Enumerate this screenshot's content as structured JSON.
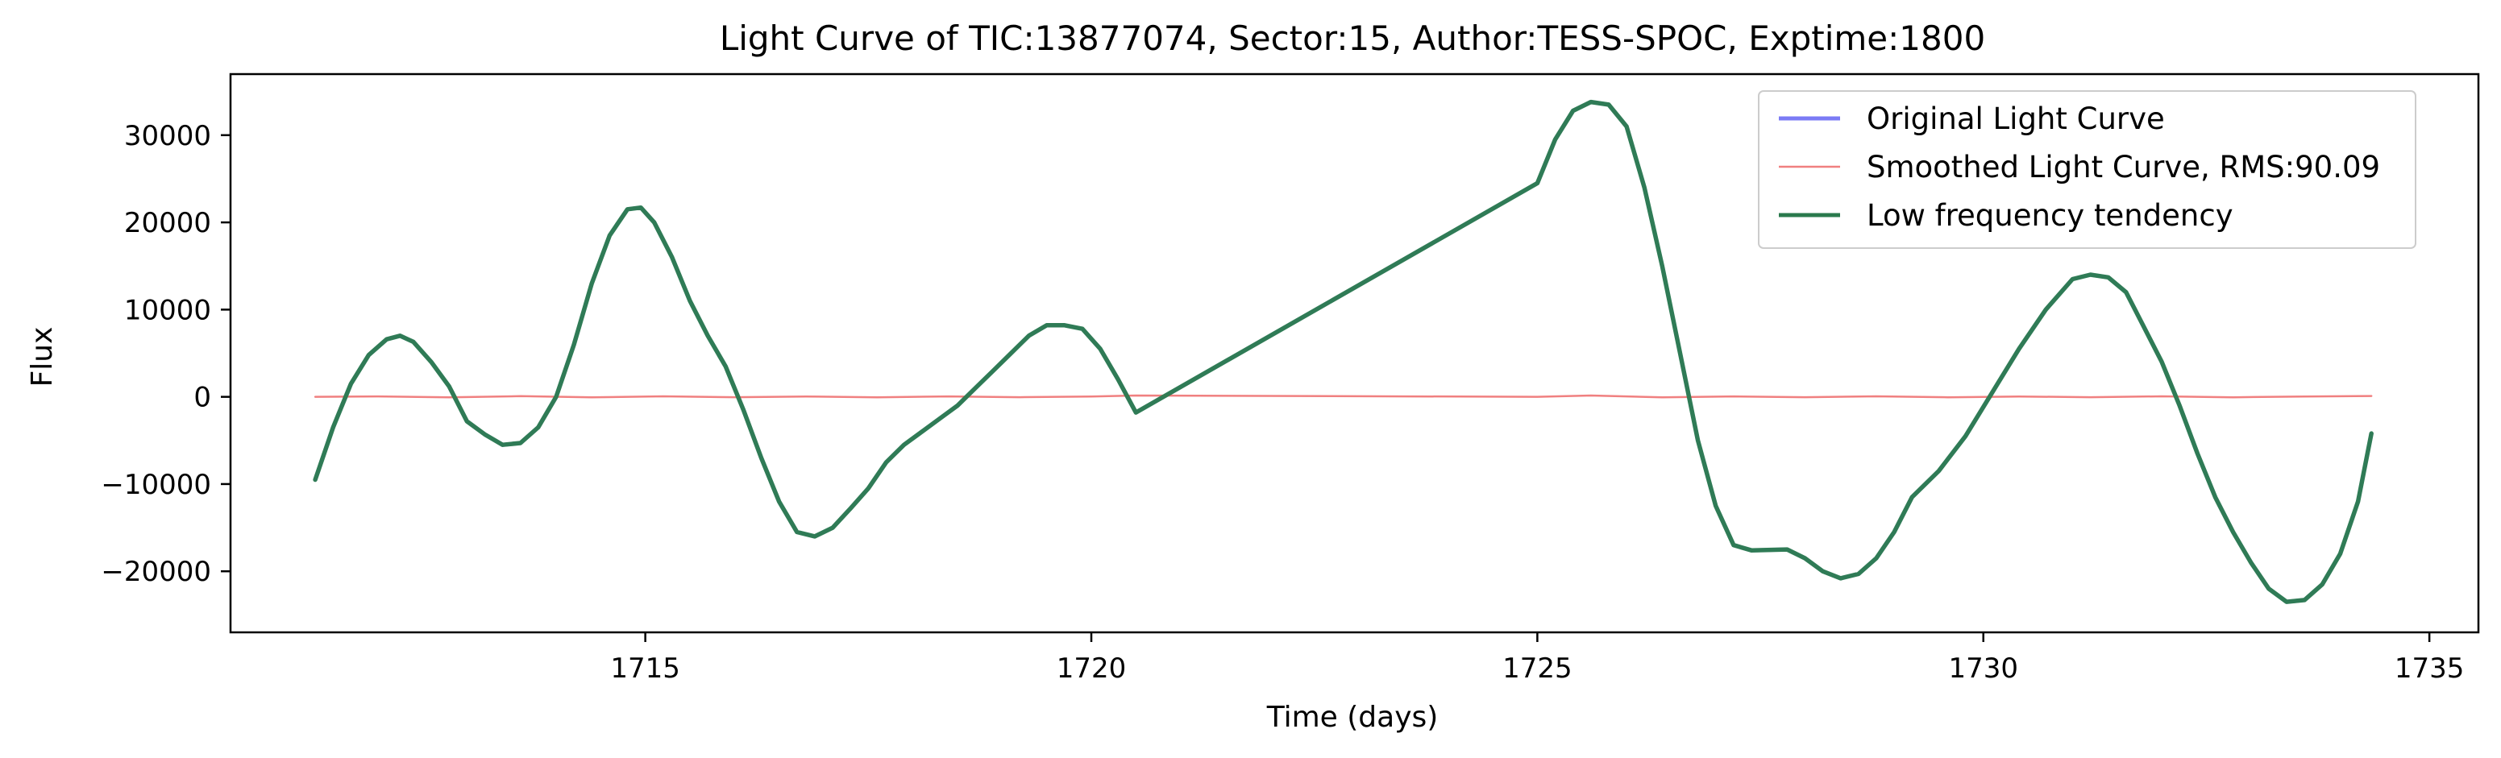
{
  "chart_data": {
    "type": "line",
    "title": "Light Curve of TIC:13877074, Sector:15, Author:TESS-SPOC, Exptime:1800",
    "xlabel": "Time (days)",
    "ylabel": "Flux",
    "xlim": [
      1710.35,
      1735.55
    ],
    "ylim": [
      -27000,
      37000
    ],
    "x_ticks": [
      1715,
      1720,
      1725,
      1730,
      1735
    ],
    "y_ticks": [
      -20000,
      -10000,
      0,
      10000,
      20000,
      30000
    ],
    "x_tick_labels": [
      "1715",
      "1720",
      "1725",
      "1730",
      "1735"
    ],
    "y_tick_labels": [
      "−20000",
      "−10000",
      "0",
      "10000",
      "20000",
      "30000"
    ],
    "grid": false,
    "legend_position": "top-right",
    "series": [
      {
        "name": "Original Light Curve",
        "color": "#7b7bf5",
        "points": [
          [
            1711.3,
            -9500
          ],
          [
            1711.5,
            -3500
          ],
          [
            1711.7,
            1500
          ],
          [
            1711.9,
            4800
          ],
          [
            1712.1,
            6600
          ],
          [
            1712.25,
            7000
          ],
          [
            1712.4,
            6300
          ],
          [
            1712.6,
            4000
          ],
          [
            1712.8,
            1200
          ],
          [
            1713.0,
            -2800
          ],
          [
            1713.2,
            -4300
          ],
          [
            1713.4,
            -5500
          ],
          [
            1713.6,
            -5300
          ],
          [
            1713.8,
            -3500
          ],
          [
            1714.0,
            0
          ],
          [
            1714.2,
            6000
          ],
          [
            1714.4,
            13000
          ],
          [
            1714.6,
            18500
          ],
          [
            1714.8,
            21500
          ],
          [
            1714.95,
            21700
          ],
          [
            1715.1,
            20000
          ],
          [
            1715.3,
            16000
          ],
          [
            1715.5,
            11000
          ],
          [
            1715.7,
            7000
          ],
          [
            1715.9,
            3500
          ],
          [
            1716.1,
            -1500
          ],
          [
            1716.3,
            -7000
          ],
          [
            1716.5,
            -12000
          ],
          [
            1716.7,
            -15500
          ],
          [
            1716.9,
            -16000
          ],
          [
            1717.1,
            -15000
          ],
          [
            1717.3,
            -12800
          ],
          [
            1717.5,
            -10500
          ],
          [
            1717.7,
            -7500
          ],
          [
            1717.9,
            -5500
          ],
          [
            1718.1,
            -4000
          ],
          [
            1718.3,
            -2500
          ],
          [
            1718.5,
            -1000
          ],
          [
            1718.7,
            1000
          ],
          [
            1718.9,
            3000
          ],
          [
            1719.1,
            5000
          ],
          [
            1719.3,
            7000
          ],
          [
            1719.5,
            8200
          ],
          [
            1719.7,
            8200
          ],
          [
            1719.9,
            7800
          ],
          [
            1720.1,
            5500
          ],
          [
            1720.3,
            2000
          ],
          [
            1720.5,
            -1800
          ],
          [
            1725.0,
            24500
          ],
          [
            1725.2,
            29500
          ],
          [
            1725.4,
            32800
          ],
          [
            1725.6,
            33800
          ],
          [
            1725.8,
            33500
          ],
          [
            1726.0,
            31000
          ],
          [
            1726.2,
            24000
          ],
          [
            1726.4,
            15000
          ],
          [
            1726.6,
            5000
          ],
          [
            1726.8,
            -5000
          ],
          [
            1727.0,
            -12500
          ],
          [
            1727.2,
            -17000
          ],
          [
            1727.4,
            -17600
          ],
          [
            1727.8,
            -17500
          ],
          [
            1728.0,
            -18500
          ],
          [
            1728.2,
            -20000
          ],
          [
            1728.4,
            -20800
          ],
          [
            1728.6,
            -20300
          ],
          [
            1728.8,
            -18500
          ],
          [
            1729.0,
            -15500
          ],
          [
            1729.2,
            -11500
          ],
          [
            1729.5,
            -8500
          ],
          [
            1729.8,
            -4500
          ],
          [
            1730.1,
            500
          ],
          [
            1730.4,
            5500
          ],
          [
            1730.7,
            10000
          ],
          [
            1731.0,
            13500
          ],
          [
            1731.2,
            14000
          ],
          [
            1731.4,
            13700
          ],
          [
            1731.6,
            12000
          ],
          [
            1731.8,
            8000
          ],
          [
            1732.0,
            4000
          ],
          [
            1732.2,
            -1000
          ],
          [
            1732.4,
            -6500
          ],
          [
            1732.6,
            -11500
          ],
          [
            1732.8,
            -15500
          ],
          [
            1733.0,
            -19000
          ],
          [
            1733.2,
            -22000
          ],
          [
            1733.4,
            -23500
          ],
          [
            1733.6,
            -23300
          ],
          [
            1733.8,
            -21500
          ],
          [
            1734.0,
            -18000
          ],
          [
            1734.2,
            -12000
          ],
          [
            1734.35,
            -4200
          ]
        ]
      },
      {
        "name": "Smoothed Light Curve, RMS:90.09",
        "color": "#f08080",
        "points": [
          [
            1711.3,
            0
          ],
          [
            1712.0,
            50
          ],
          [
            1712.8,
            -50
          ],
          [
            1713.6,
            80
          ],
          [
            1714.4,
            -60
          ],
          [
            1715.2,
            60
          ],
          [
            1716.0,
            -40
          ],
          [
            1716.8,
            40
          ],
          [
            1717.6,
            -50
          ],
          [
            1718.4,
            50
          ],
          [
            1719.2,
            -40
          ],
          [
            1720.0,
            40
          ],
          [
            1720.5,
            150
          ],
          [
            1725.0,
            0
          ],
          [
            1725.6,
            150
          ],
          [
            1726.4,
            -60
          ],
          [
            1727.2,
            50
          ],
          [
            1728.0,
            -40
          ],
          [
            1728.8,
            60
          ],
          [
            1729.6,
            -50
          ],
          [
            1730.4,
            40
          ],
          [
            1731.2,
            -40
          ],
          [
            1732.0,
            60
          ],
          [
            1732.8,
            -50
          ],
          [
            1733.6,
            40
          ],
          [
            1734.35,
            100
          ]
        ]
      },
      {
        "name": "Low frequency tendency",
        "color": "#2a7a4d",
        "points": [
          [
            1711.3,
            -9500
          ],
          [
            1711.5,
            -3500
          ],
          [
            1711.7,
            1500
          ],
          [
            1711.9,
            4800
          ],
          [
            1712.1,
            6600
          ],
          [
            1712.25,
            7000
          ],
          [
            1712.4,
            6300
          ],
          [
            1712.6,
            4000
          ],
          [
            1712.8,
            1200
          ],
          [
            1713.0,
            -2800
          ],
          [
            1713.2,
            -4300
          ],
          [
            1713.4,
            -5500
          ],
          [
            1713.6,
            -5300
          ],
          [
            1713.8,
            -3500
          ],
          [
            1714.0,
            0
          ],
          [
            1714.2,
            6000
          ],
          [
            1714.4,
            13000
          ],
          [
            1714.6,
            18500
          ],
          [
            1714.8,
            21500
          ],
          [
            1714.95,
            21700
          ],
          [
            1715.1,
            20000
          ],
          [
            1715.3,
            16000
          ],
          [
            1715.5,
            11000
          ],
          [
            1715.7,
            7000
          ],
          [
            1715.9,
            3500
          ],
          [
            1716.1,
            -1500
          ],
          [
            1716.3,
            -7000
          ],
          [
            1716.5,
            -12000
          ],
          [
            1716.7,
            -15500
          ],
          [
            1716.9,
            -16000
          ],
          [
            1717.1,
            -15000
          ],
          [
            1717.3,
            -12800
          ],
          [
            1717.5,
            -10500
          ],
          [
            1717.7,
            -7500
          ],
          [
            1717.9,
            -5500
          ],
          [
            1718.1,
            -4000
          ],
          [
            1718.3,
            -2500
          ],
          [
            1718.5,
            -1000
          ],
          [
            1718.7,
            1000
          ],
          [
            1718.9,
            3000
          ],
          [
            1719.1,
            5000
          ],
          [
            1719.3,
            7000
          ],
          [
            1719.5,
            8200
          ],
          [
            1719.7,
            8200
          ],
          [
            1719.9,
            7800
          ],
          [
            1720.1,
            5500
          ],
          [
            1720.3,
            2000
          ],
          [
            1720.5,
            -1800
          ],
          [
            1725.0,
            24500
          ],
          [
            1725.2,
            29500
          ],
          [
            1725.4,
            32800
          ],
          [
            1725.6,
            33800
          ],
          [
            1725.8,
            33500
          ],
          [
            1726.0,
            31000
          ],
          [
            1726.2,
            24000
          ],
          [
            1726.4,
            15000
          ],
          [
            1726.6,
            5000
          ],
          [
            1726.8,
            -5000
          ],
          [
            1727.0,
            -12500
          ],
          [
            1727.2,
            -17000
          ],
          [
            1727.4,
            -17600
          ],
          [
            1727.8,
            -17500
          ],
          [
            1728.0,
            -18500
          ],
          [
            1728.2,
            -20000
          ],
          [
            1728.4,
            -20800
          ],
          [
            1728.6,
            -20300
          ],
          [
            1728.8,
            -18500
          ],
          [
            1729.0,
            -15500
          ],
          [
            1729.2,
            -11500
          ],
          [
            1729.5,
            -8500
          ],
          [
            1729.8,
            -4500
          ],
          [
            1730.1,
            500
          ],
          [
            1730.4,
            5500
          ],
          [
            1730.7,
            10000
          ],
          [
            1731.0,
            13500
          ],
          [
            1731.2,
            14000
          ],
          [
            1731.4,
            13700
          ],
          [
            1731.6,
            12000
          ],
          [
            1731.8,
            8000
          ],
          [
            1732.0,
            4000
          ],
          [
            1732.2,
            -1000
          ],
          [
            1732.4,
            -6500
          ],
          [
            1732.6,
            -11500
          ],
          [
            1732.8,
            -15500
          ],
          [
            1733.0,
            -19000
          ],
          [
            1733.2,
            -22000
          ],
          [
            1733.4,
            -23500
          ],
          [
            1733.6,
            -23300
          ],
          [
            1733.8,
            -21500
          ],
          [
            1734.0,
            -18000
          ],
          [
            1734.2,
            -12000
          ],
          [
            1734.35,
            -4200
          ]
        ]
      }
    ]
  }
}
